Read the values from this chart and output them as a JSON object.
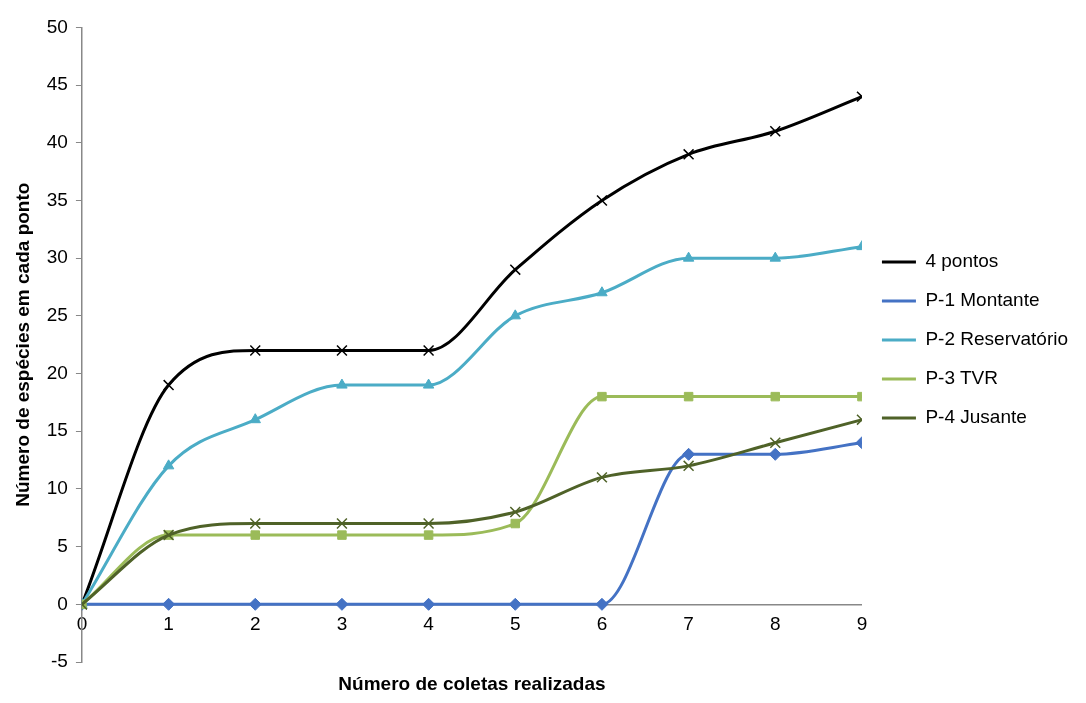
{
  "chart_data": {
    "type": "line",
    "xlabel": "Número de coletas realizadas",
    "ylabel": "Número de espécies em cada ponto",
    "x": [
      0,
      1,
      2,
      3,
      4,
      5,
      6,
      7,
      8,
      9
    ],
    "xlim": [
      0,
      9
    ],
    "xticks": [
      0,
      1,
      2,
      3,
      4,
      5,
      6,
      7,
      8,
      9
    ],
    "ylim": [
      -5,
      50
    ],
    "yticks": [
      -5,
      0,
      5,
      10,
      15,
      20,
      25,
      30,
      35,
      40,
      45,
      50
    ],
    "grid": false,
    "legend": "right",
    "line_style": "solid",
    "series": [
      {
        "name": "4 pontos",
        "color": "#000000",
        "marker": "cross",
        "values": [
          0,
          19,
          22,
          22,
          22,
          29,
          35,
          39,
          41,
          44
        ]
      },
      {
        "name": "P-1 Montante",
        "color": "#4472c4",
        "marker": "diamond",
        "values": [
          0,
          0,
          0,
          0,
          0,
          0,
          0,
          13,
          13,
          14
        ]
      },
      {
        "name": "P-2 Reservatório",
        "color": "#4bacc6",
        "marker": "triangle",
        "values": [
          0,
          12,
          16,
          19,
          19,
          25,
          27,
          30,
          30,
          31
        ]
      },
      {
        "name": "P-3 TVR",
        "color": "#9bbb59",
        "marker": "square",
        "values": [
          0,
          6,
          6,
          6,
          6,
          7,
          18,
          18,
          18,
          18
        ]
      },
      {
        "name": "P-4 Jusante",
        "color": "#4f6228",
        "marker": "cross",
        "values": [
          0,
          6,
          7,
          7,
          7,
          8,
          11,
          12,
          14,
          16
        ]
      }
    ]
  }
}
